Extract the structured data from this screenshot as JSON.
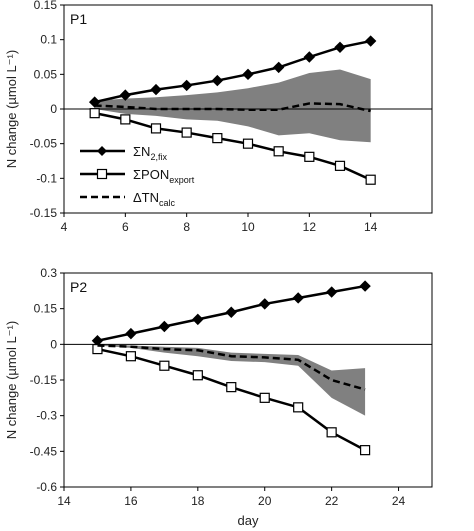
{
  "chart_data": [
    {
      "type": "line",
      "panel_label": "P1",
      "ylabel": "N change (µmol L⁻¹)",
      "xlim": [
        4,
        16
      ],
      "ylim": [
        -0.15,
        0.15
      ],
      "xticks": [
        4,
        6,
        8,
        10,
        12,
        14
      ],
      "yticks": [
        -0.15,
        -0.1,
        -0.05,
        0,
        0.05,
        0.1,
        0.15
      ],
      "ytick_labels": [
        "-0.15",
        "-0.1",
        "-0.05",
        "0",
        "0.05",
        "0.1",
        "0.15"
      ],
      "x": [
        5,
        6,
        7,
        8,
        9,
        10,
        11,
        12,
        13,
        14
      ],
      "series": [
        {
          "name": "ΣN2,fix",
          "marker": "diamond",
          "values": [
            0.01,
            0.02,
            0.028,
            0.034,
            0.041,
            0.05,
            0.06,
            0.075,
            0.089,
            0.098
          ]
        },
        {
          "name": "ΣPONexport",
          "marker": "open-square",
          "values": [
            -0.006,
            -0.015,
            -0.028,
            -0.034,
            -0.042,
            -0.05,
            -0.061,
            -0.069,
            -0.082,
            -0.102
          ]
        },
        {
          "name": "ΔTNcalc",
          "style": "dashed",
          "values": [
            0.005,
            0.003,
            0.0,
            0.0,
            0.0,
            -0.001,
            -0.001,
            0.008,
            0.007,
            -0.003
          ]
        }
      ],
      "band": {
        "upper": [
          0.012,
          0.015,
          0.017,
          0.02,
          0.024,
          0.03,
          0.038,
          0.052,
          0.057,
          0.043
        ],
        "lower": [
          0.0,
          -0.007,
          -0.01,
          -0.015,
          -0.017,
          -0.025,
          -0.038,
          -0.035,
          -0.045,
          -0.048
        ]
      },
      "zero_line": true
    },
    {
      "type": "line",
      "panel_label": "P2",
      "ylabel": "N change (µmol L⁻¹)",
      "xlabel": "day",
      "xlim": [
        14,
        25
      ],
      "ylim": [
        -0.6,
        0.3
      ],
      "xticks": [
        14,
        16,
        18,
        20,
        22,
        24
      ],
      "yticks": [
        -0.6,
        -0.45,
        -0.3,
        -0.15,
        0,
        0.15,
        0.3
      ],
      "ytick_labels": [
        "-0.6",
        "-0.45",
        "-0.3",
        "-0.15",
        "0",
        "0.15",
        "0.3"
      ],
      "x": [
        15,
        16,
        17,
        18,
        19,
        20,
        21,
        22,
        23
      ],
      "series": [
        {
          "name": "ΣN2,fix",
          "marker": "diamond",
          "values": [
            0.015,
            0.045,
            0.075,
            0.105,
            0.135,
            0.17,
            0.195,
            0.22,
            0.245
          ]
        },
        {
          "name": "ΣPONexport",
          "marker": "open-square",
          "values": [
            -0.02,
            -0.05,
            -0.09,
            -0.13,
            -0.18,
            -0.225,
            -0.265,
            -0.37,
            -0.445
          ]
        },
        {
          "name": "ΔTNcalc",
          "style": "dashed",
          "values": [
            -0.005,
            -0.01,
            -0.02,
            -0.025,
            -0.05,
            -0.055,
            -0.065,
            -0.15,
            -0.19
          ]
        }
      ],
      "band": {
        "upper": [
          0.0,
          -0.005,
          -0.01,
          -0.015,
          -0.035,
          -0.04,
          -0.045,
          -0.11,
          -0.1
        ],
        "lower": [
          -0.005,
          -0.015,
          -0.035,
          -0.05,
          -0.07,
          -0.075,
          -0.09,
          -0.225,
          -0.3
        ]
      },
      "zero_line": true
    }
  ],
  "legend": [
    {
      "base": "ΣN",
      "sub": "2,fix"
    },
    {
      "base": "ΣPON",
      "sub": "export"
    },
    {
      "base": "ΔTN",
      "sub": "calc"
    }
  ],
  "colors": {
    "line": "#000000",
    "band": "#808080",
    "axis": "#000000"
  }
}
